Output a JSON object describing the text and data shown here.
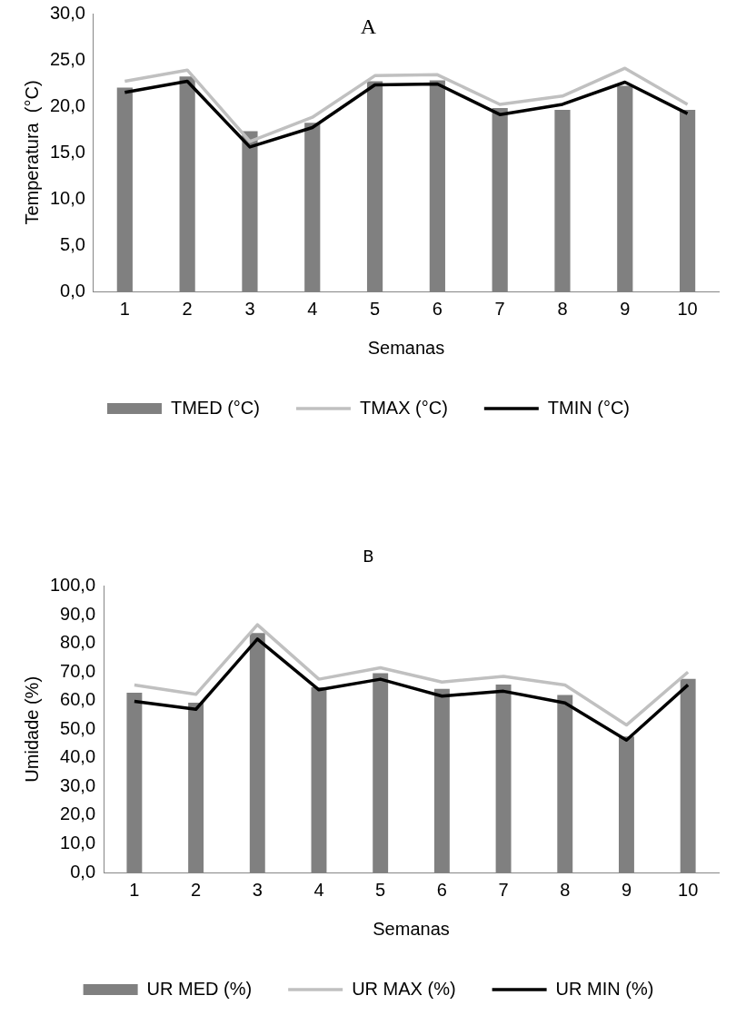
{
  "chart_data": [
    {
      "type": "bar",
      "title": "A",
      "xlabel": "Semanas",
      "ylabel": "Temperatura  (°C)",
      "categories": [
        "1",
        "2",
        "3",
        "4",
        "5",
        "6",
        "7",
        "8",
        "9",
        "10"
      ],
      "series": [
        {
          "name": "TMED (°C)",
          "color": "#808080",
          "values": [
            22.0,
            23.2,
            17.3,
            18.2,
            22.7,
            22.8,
            19.8,
            19.6,
            22.2,
            19.6
          ]
        },
        {
          "name": "TMAX (°C)",
          "type": "line",
          "color": "#c0c0c0",
          "values": [
            22.7,
            23.9,
            16.2,
            18.8,
            23.3,
            23.4,
            20.2,
            21.1,
            24.1,
            20.2
          ]
        },
        {
          "name": "TMIN (°C)",
          "type": "line",
          "color": "#000000",
          "values": [
            21.5,
            22.7,
            15.6,
            17.7,
            22.3,
            22.4,
            19.1,
            20.2,
            22.6,
            19.2
          ]
        }
      ],
      "ylim": [
        0,
        30
      ],
      "yticks": [
        {
          "value": 0,
          "label": "0,0"
        },
        {
          "value": 5,
          "label": "5,0"
        },
        {
          "value": 10,
          "label": "10,0"
        },
        {
          "value": 15,
          "label": "15,0"
        },
        {
          "value": 20,
          "label": "20,0"
        },
        {
          "value": 25,
          "label": "25,0"
        },
        {
          "value": 30,
          "label": "30,0"
        }
      ],
      "grid": false,
      "legend": "bottom",
      "marker": "none"
    },
    {
      "type": "bar",
      "title": "B",
      "xlabel": "Semanas",
      "ylabel": "Umidade (%)",
      "categories": [
        "1",
        "2",
        "3",
        "4",
        "5",
        "6",
        "7",
        "8",
        "9",
        "10"
      ],
      "series": [
        {
          "name": "UR MED (%)",
          "color": "#808080",
          "values": [
            62.8,
            59.3,
            83.6,
            64.7,
            69.6,
            64.1,
            65.6,
            62.0,
            47.5,
            67.6
          ]
        },
        {
          "name": "UR MAX (%)",
          "type": "line",
          "color": "#c0c0c0",
          "values": [
            65.5,
            62.2,
            86.5,
            67.5,
            71.5,
            66.5,
            68.5,
            65.5,
            51.5,
            70.0
          ]
        },
        {
          "name": "UR MIN (%)",
          "type": "line",
          "color": "#000000",
          "values": [
            59.8,
            57.0,
            81.5,
            63.8,
            67.5,
            61.6,
            63.3,
            59.2,
            46.2,
            65.5
          ]
        }
      ],
      "ylim": [
        0,
        100
      ],
      "yticks": [
        {
          "value": 0,
          "label": "0,0"
        },
        {
          "value": 10,
          "label": "10,0"
        },
        {
          "value": 20,
          "label": "20,0"
        },
        {
          "value": 30,
          "label": "30,0"
        },
        {
          "value": 40,
          "label": "40,0"
        },
        {
          "value": 50,
          "label": "50,0"
        },
        {
          "value": 60,
          "label": "60,0"
        },
        {
          "value": 70,
          "label": "70,0"
        },
        {
          "value": 80,
          "label": "80,0"
        },
        {
          "value": 90,
          "label": "90,0"
        },
        {
          "value": 100,
          "label": "100,0"
        }
      ],
      "grid": false,
      "legend": "bottom",
      "marker": "none"
    }
  ]
}
